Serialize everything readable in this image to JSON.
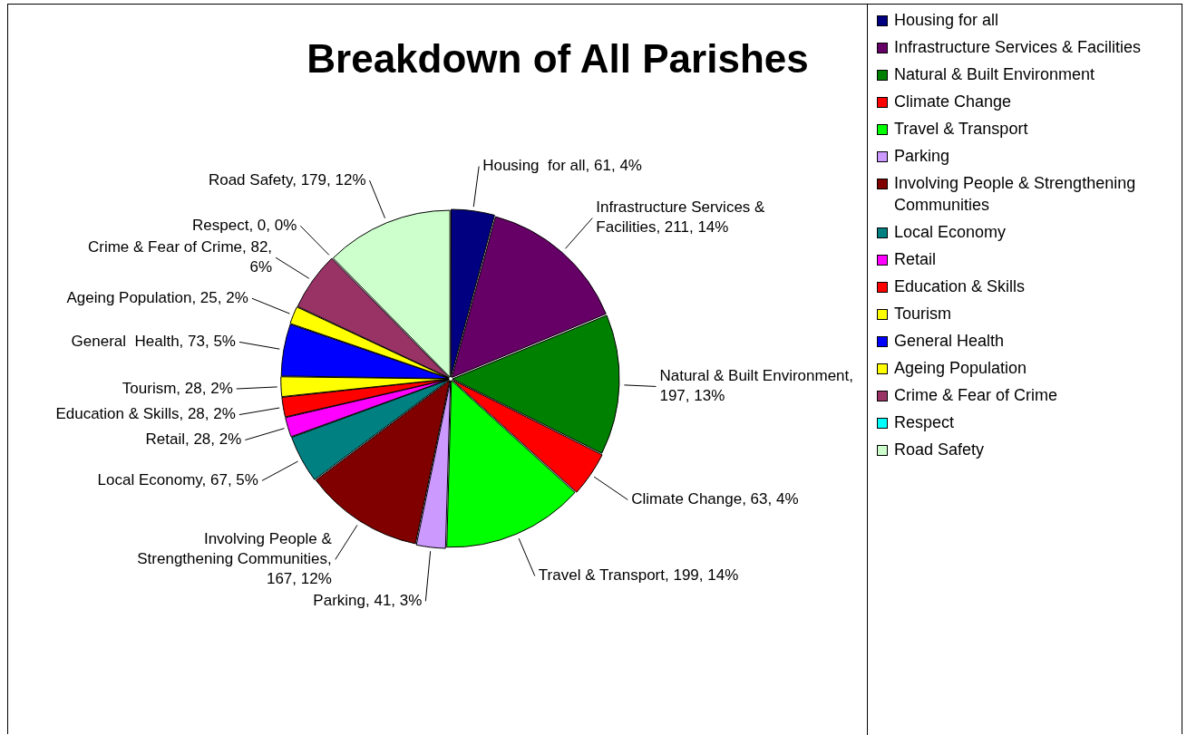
{
  "chart_data": {
    "type": "pie",
    "title": "Breakdown of All Parishes",
    "categories": [
      "Housing  for all",
      "Infrastructure Services & Facilities",
      "Natural & Built Environment",
      "Climate Change",
      "Travel & Transport",
      "Parking",
      "Involving People & Strengthening Communities",
      "Local Economy",
      "Retail",
      "Education & Skills",
      "Tourism",
      "General  Health",
      "Ageing Population",
      "Crime & Fear of Crime",
      "Respect",
      "Road Safety"
    ],
    "values": [
      61,
      211,
      197,
      63,
      199,
      41,
      167,
      67,
      28,
      28,
      28,
      73,
      25,
      82,
      0,
      179
    ],
    "value_labels": [
      "Housing  for all, 61, 4%",
      "Infrastructure Services & Facilities, 211, 14%",
      "Natural & Built Environment, 197, 13%",
      "Climate Change, 63, 4%",
      "Travel & Transport, 199, 14%",
      "Parking, 41, 3%",
      "Involving People & Strengthening Communities, 167, 12%",
      "Local Economy, 67, 5%",
      "Retail, 28, 2%",
      "Education & Skills, 28, 2%",
      "Tourism, 28, 2%",
      "General  Health, 73, 5%",
      "Ageing Population, 25, 2%",
      "Crime & Fear of Crime, 82, 6%",
      "Respect, 0, 0%",
      "Road Safety, 179, 12%"
    ],
    "colors": [
      "#000080",
      "#660066",
      "#008000",
      "#ff0000",
      "#00ff00",
      "#cc99ff",
      "#800000",
      "#008080",
      "#ff00ff",
      "#ff0000",
      "#ffff00",
      "#0000ff",
      "#ffff00",
      "#993366",
      "#00ffff",
      "#ccffcc"
    ],
    "legend": "right"
  }
}
